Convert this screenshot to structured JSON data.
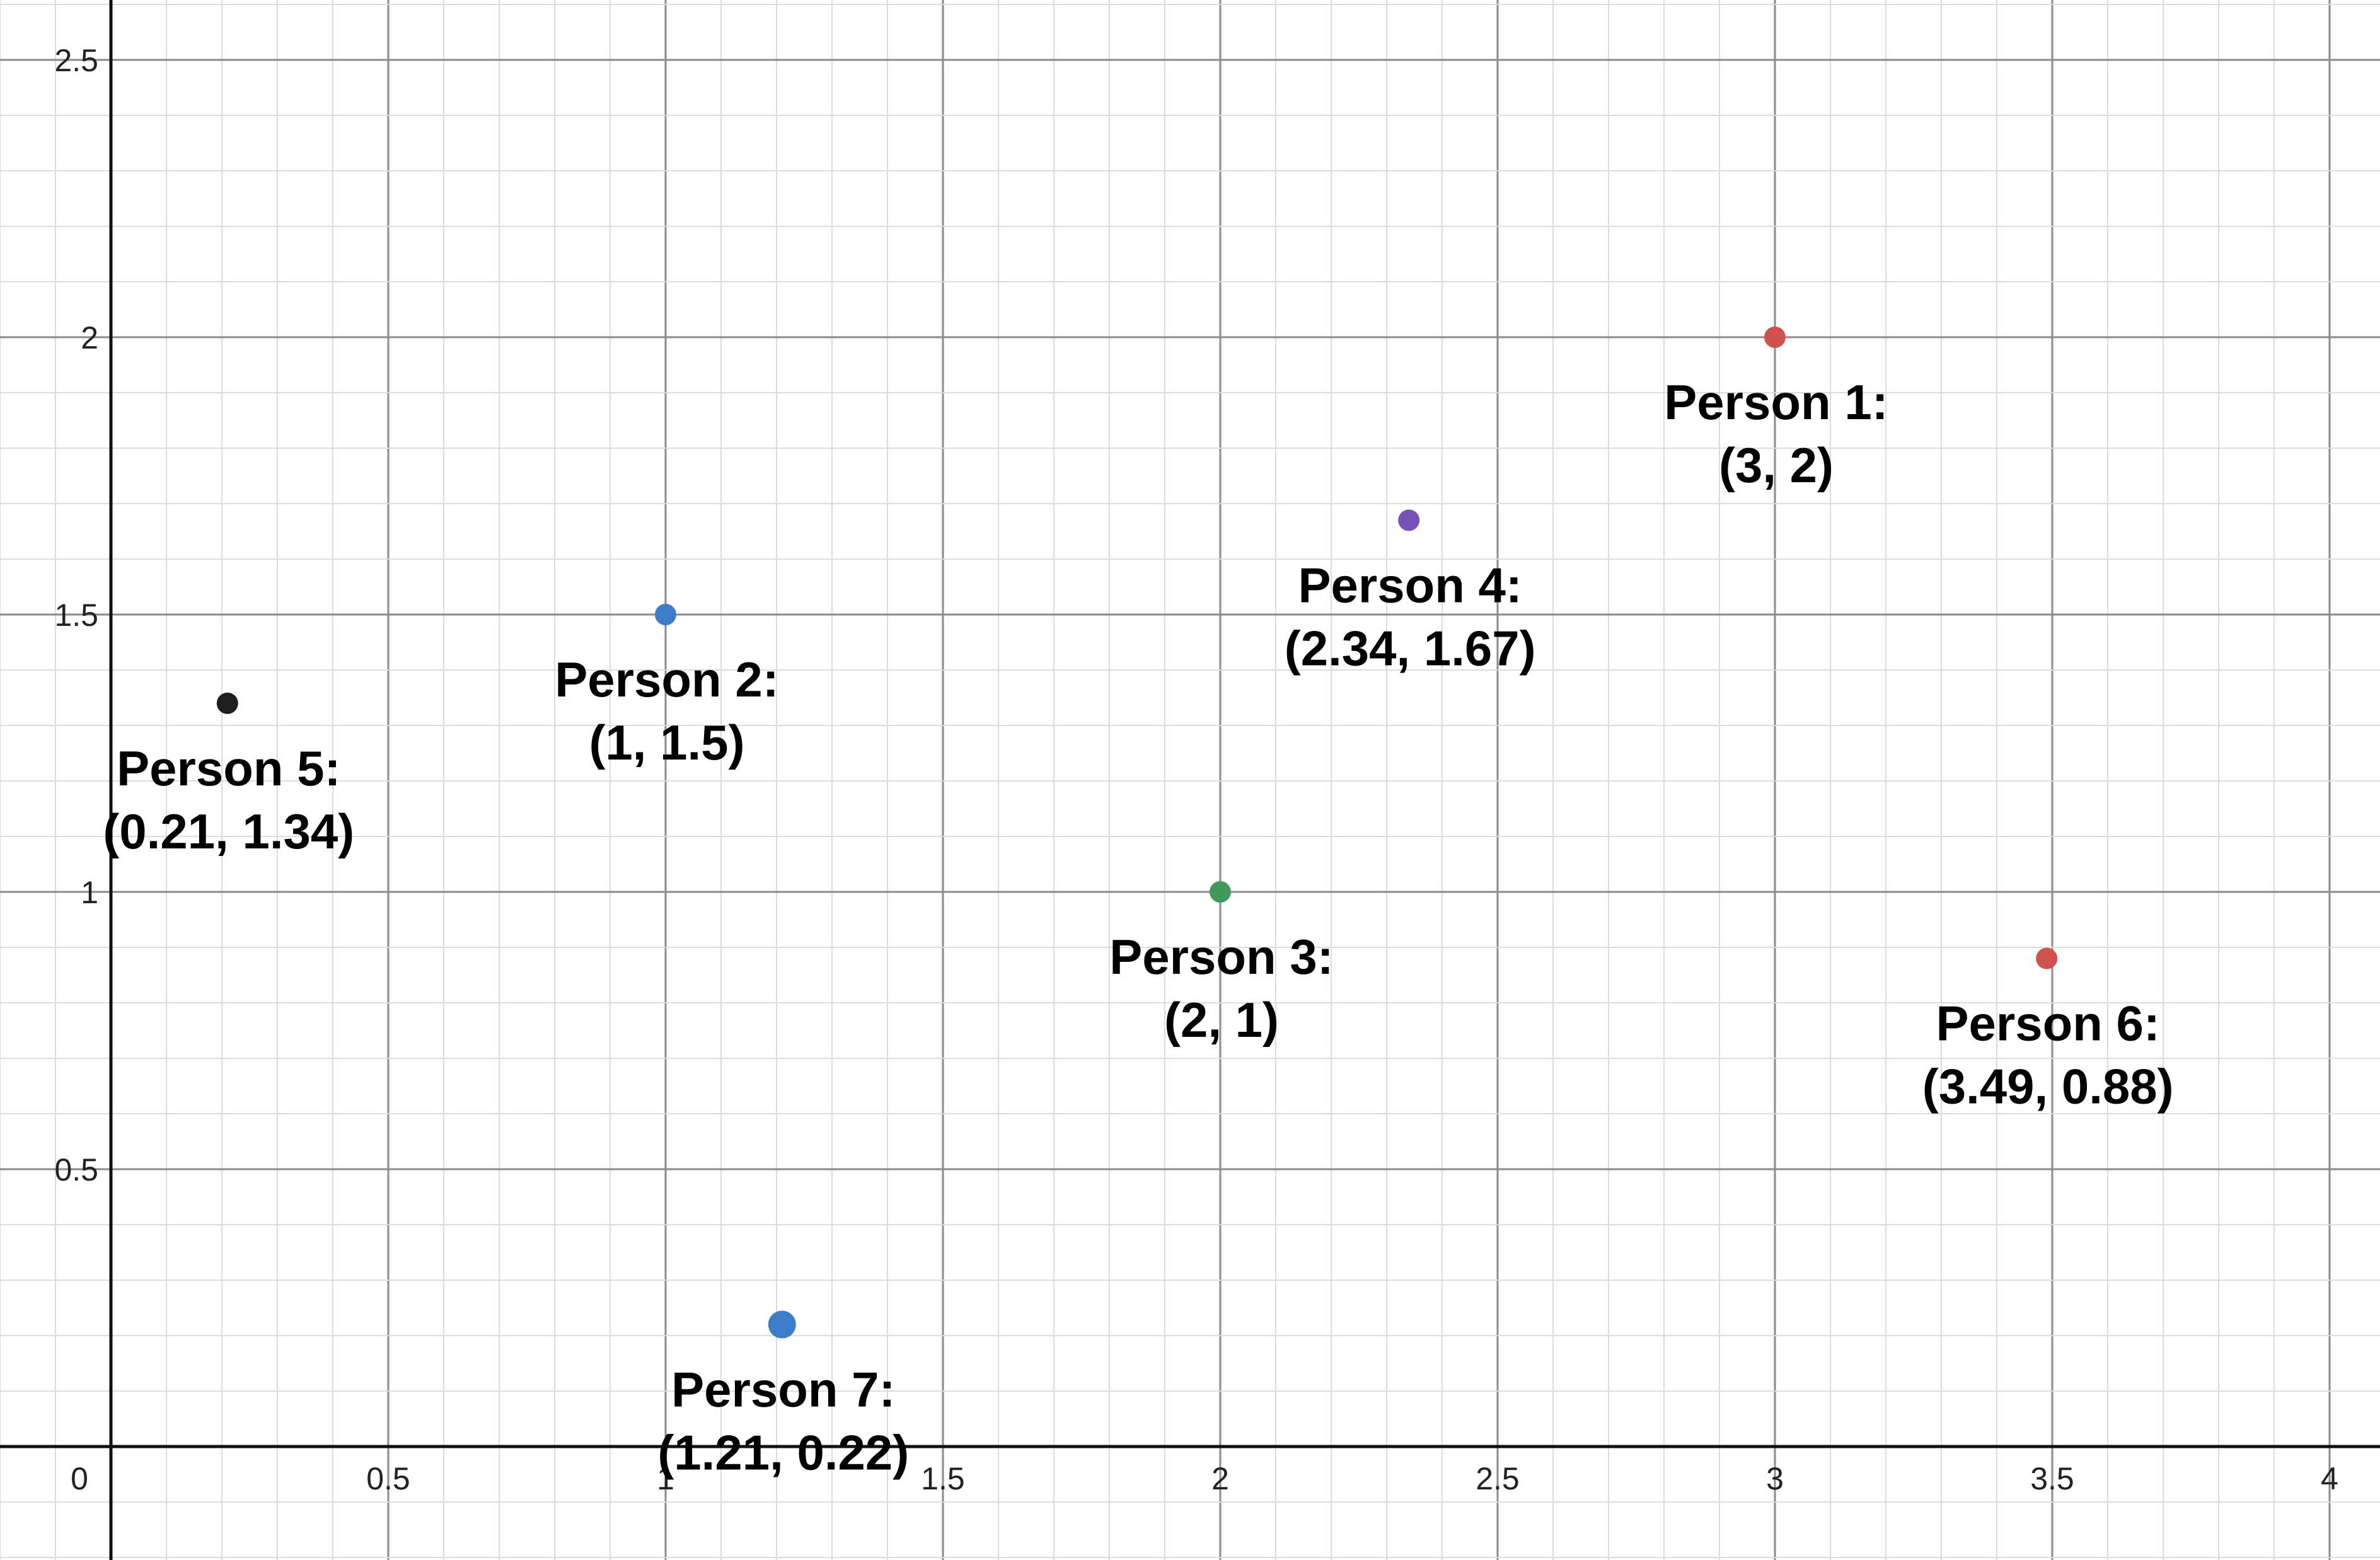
{
  "chart_data": {
    "type": "scatter",
    "title": "",
    "xlabel": "",
    "ylabel": "",
    "xlim": [
      -0.2,
      4.1
    ],
    "ylim": [
      -0.2,
      2.6
    ],
    "grid": true,
    "xticks": [
      "0.5",
      "1",
      "1.5",
      "2",
      "2.5",
      "3",
      "3.5",
      "4"
    ],
    "yticks": [
      "0.5",
      "1",
      "1.5",
      "2",
      "2.5"
    ],
    "origin_label": "0",
    "points": [
      {
        "label": "Person 1:",
        "coords": "(3, 2)",
        "x": 3,
        "y": 2,
        "color": "#d0524c"
      },
      {
        "label": "Person 2:",
        "coords": "(1, 1.5)",
        "x": 1,
        "y": 1.5,
        "color": "#3d7cc9"
      },
      {
        "label": "Person 3:",
        "coords": "(2, 1)",
        "x": 2,
        "y": 1,
        "color": "#3f9a5a"
      },
      {
        "label": "Person 4:",
        "coords": "(2.34, 1.67)",
        "x": 2.34,
        "y": 1.67,
        "color": "#7652b8"
      },
      {
        "label": "Person 5:",
        "coords": "(0.21, 1.34)",
        "x": 0.21,
        "y": 1.34,
        "color": "#1e1e1e"
      },
      {
        "label": "Person 6:",
        "coords": "(3.49, 0.88)",
        "x": 3.49,
        "y": 0.88,
        "color": "#d0524c"
      },
      {
        "label": "Person 7:",
        "coords": "(1.21, 0.22)",
        "x": 1.21,
        "y": 0.22,
        "color": "#3d7cc9"
      }
    ]
  }
}
